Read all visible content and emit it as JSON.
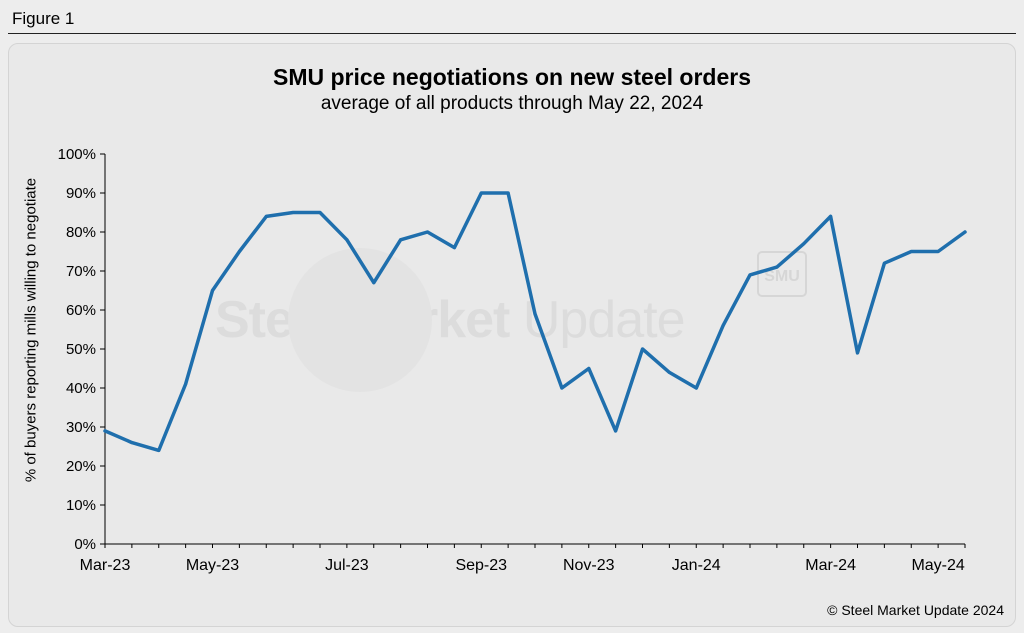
{
  "figure_label": "Figure 1",
  "copyright": "© Steel Market Update 2024",
  "watermark": {
    "bold": "Steel Market",
    "light": " Update",
    "badge": "SMU"
  },
  "chart_data": {
    "type": "line",
    "title": "SMU price negotiations on new steel orders",
    "subtitle": "average of all products through May 22, 2024",
    "xlabel": "",
    "ylabel": "% of buyers reporting mills willing to negotiate",
    "ylim": [
      0,
      100
    ],
    "yticks": [
      "0%",
      "10%",
      "20%",
      "30%",
      "40%",
      "50%",
      "60%",
      "70%",
      "80%",
      "90%",
      "100%"
    ],
    "x_tick_labels": [
      "Mar-23",
      "May-23",
      "Jul-23",
      "Sep-23",
      "Nov-23",
      "Jan-24",
      "Mar-24",
      "May-24"
    ],
    "x_tick_indices": [
      0,
      4,
      9,
      14,
      18,
      22,
      27,
      31
    ],
    "grid": false,
    "series_color": "#1f6fad",
    "series": [
      {
        "name": "SMU price negotiations",
        "values": [
          29,
          26,
          24,
          41,
          65,
          75,
          84,
          85,
          85,
          78,
          67,
          78,
          80,
          76,
          90,
          90,
          59,
          40,
          45,
          29,
          50,
          44,
          40,
          56,
          69,
          71,
          77,
          84,
          49,
          72,
          75,
          75,
          80
        ]
      }
    ]
  }
}
